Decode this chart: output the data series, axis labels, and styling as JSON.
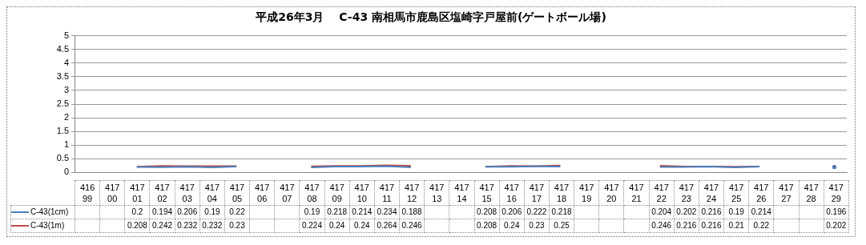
{
  "chart_data": {
    "type": "line",
    "title": "平成26年3月　 C-43 南相馬市鹿島区塩崎字戸屋前(ゲートボール場)",
    "categories": [
      "41699",
      "41700",
      "41701",
      "41702",
      "41703",
      "41704",
      "41705",
      "41706",
      "41707",
      "41708",
      "41709",
      "41710",
      "41711",
      "41712",
      "41713",
      "41714",
      "41715",
      "41716",
      "41717",
      "41718",
      "41719",
      "41720",
      "41721",
      "41722",
      "41723",
      "41724",
      "41725",
      "41726",
      "41727",
      "41728",
      "41729"
    ],
    "series": [
      {
        "name": "C-43(1cm)",
        "color": "#4a7ebb",
        "values": [
          null,
          null,
          0.2,
          0.194,
          0.206,
          0.19,
          0.22,
          null,
          null,
          0.19,
          0.218,
          0.214,
          0.234,
          0.188,
          null,
          null,
          0.208,
          0.206,
          0.222,
          0.218,
          null,
          null,
          null,
          0.204,
          0.202,
          0.216,
          0.19,
          0.214,
          null,
          null,
          0.196
        ]
      },
      {
        "name": "C-43(1m)",
        "color": "#be4b48",
        "values": [
          null,
          null,
          0.208,
          0.242,
          0.232,
          0.232,
          0.23,
          null,
          null,
          0.224,
          0.24,
          0.24,
          0.264,
          0.246,
          null,
          null,
          0.208,
          0.24,
          0.23,
          0.25,
          null,
          null,
          null,
          0.246,
          0.216,
          0.216,
          0.21,
          0.22,
          null,
          null,
          0.202
        ]
      }
    ],
    "ylim": [
      0,
      5
    ],
    "yticks": [
      0,
      0.5,
      1,
      1.5,
      2,
      2.5,
      3,
      3.5,
      4,
      4.5,
      5
    ],
    "grid": "y",
    "legend": "bottom",
    "data_labels": true,
    "marker": "none",
    "line_style": "solid"
  }
}
